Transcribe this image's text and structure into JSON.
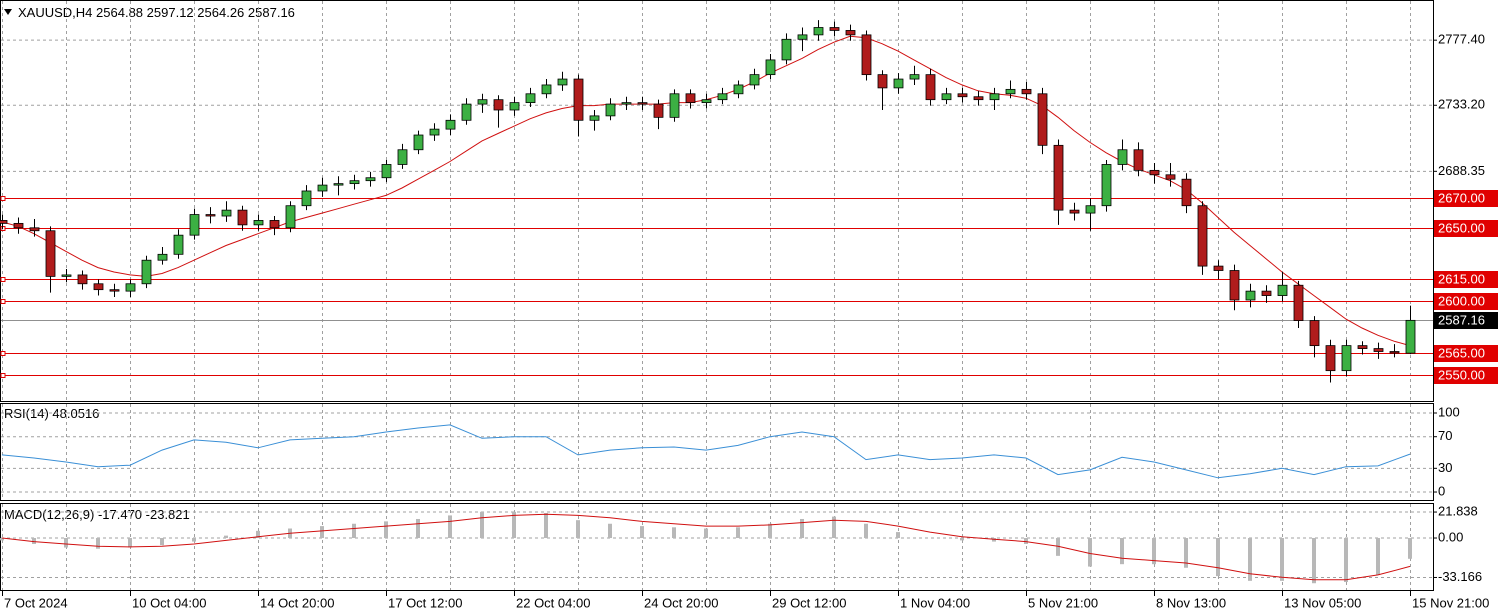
{
  "chart_data": [
    {
      "type": "candlestick",
      "symbol": "XAUUSD,H4",
      "categories": [
        "7 Oct 2024",
        null,
        null,
        null,
        null,
        null,
        null,
        null,
        "10 Oct 04:00",
        null,
        null,
        null,
        null,
        null,
        null,
        null,
        "14 Oct 20:00",
        null,
        null,
        null,
        null,
        null,
        null,
        null,
        "17 Oct 12:00",
        null,
        null,
        null,
        null,
        null,
        null,
        null,
        "22 Oct 04:00",
        null,
        null,
        null,
        null,
        null,
        null,
        null,
        "24 Oct 20:00",
        null,
        null,
        null,
        null,
        null,
        null,
        null,
        "29 Oct 12:00",
        null,
        null,
        null,
        null,
        null,
        null,
        null,
        "1 Nov 04:00",
        null,
        null,
        null,
        null,
        null,
        null,
        null,
        "5 Nov 21:00",
        null,
        null,
        null,
        null,
        null,
        null,
        null,
        "8 Nov 13:00",
        null,
        null,
        null,
        null,
        null,
        null,
        null,
        "13 Nov 05:00",
        null,
        null,
        null,
        null,
        null,
        null,
        null,
        "15 Nov 21:00"
      ],
      "open": [
        2655,
        2653,
        2650,
        2648,
        2617,
        2618,
        2612,
        2608,
        2607,
        2612,
        2628,
        2632,
        2645,
        2659,
        2658,
        2662,
        2652,
        2655,
        2650,
        2665,
        2675,
        2679,
        2680,
        2682,
        2684,
        2693,
        2703,
        2713,
        2717,
        2723,
        2734,
        2737,
        2730,
        2735,
        2741,
        2747,
        2751,
        2723,
        2726,
        2734,
        2735,
        2734,
        2725,
        2741,
        2735,
        2737,
        2741,
        2747,
        2754,
        2764,
        2778,
        2781,
        2786,
        2784,
        2781,
        2754,
        2745,
        2751,
        2754,
        2737,
        2741,
        2739,
        2737,
        2741,
        2744,
        2741,
        2706,
        2662,
        2660,
        2665,
        2693,
        2703,
        2689,
        2686,
        2683,
        2665,
        2624,
        2621,
        2601,
        2607,
        2604,
        2611,
        2587,
        2570,
        2553,
        2570,
        2568,
        2566,
        2564.88
      ],
      "high": [
        2659,
        2657,
        2656,
        2651,
        2622,
        2621,
        2615,
        2612,
        2615,
        2631,
        2637,
        2649,
        2663,
        2664,
        2668,
        2665,
        2659,
        2658,
        2668,
        2679,
        2684,
        2685,
        2686,
        2688,
        2696,
        2707,
        2716,
        2721,
        2727,
        2738,
        2741,
        2740,
        2739,
        2745,
        2751,
        2756,
        2754,
        2730,
        2738,
        2739,
        2739,
        2737,
        2744,
        2744,
        2741,
        2745,
        2750,
        2758,
        2768,
        2782,
        2786,
        2791,
        2790,
        2788,
        2784,
        2757,
        2755,
        2760,
        2758,
        2745,
        2745,
        2743,
        2745,
        2750,
        2749,
        2745,
        2710,
        2667,
        2670,
        2696,
        2710,
        2708,
        2694,
        2694,
        2687,
        2668,
        2628,
        2625,
        2612,
        2611,
        2620,
        2614,
        2590,
        2574,
        2574,
        2573,
        2572,
        2571,
        2597.12
      ],
      "low": [
        2649,
        2646,
        2644,
        2606,
        2613,
        2608,
        2604,
        2603,
        2603,
        2609,
        2625,
        2629,
        2642,
        2653,
        2654,
        2648,
        2648,
        2645,
        2647,
        2662,
        2671,
        2672,
        2676,
        2678,
        2681,
        2690,
        2700,
        2709,
        2713,
        2720,
        2728,
        2718,
        2726,
        2732,
        2738,
        2743,
        2712,
        2716,
        2723,
        2730,
        2730,
        2717,
        2722,
        2731,
        2731,
        2734,
        2738,
        2744,
        2751,
        2761,
        2770,
        2777,
        2780,
        2777,
        2750,
        2730,
        2741,
        2747,
        2733,
        2734,
        2735,
        2733,
        2730,
        2738,
        2737,
        2700,
        2652,
        2655,
        2648,
        2661,
        2689,
        2685,
        2680,
        2678,
        2660,
        2618,
        2615,
        2594,
        2596,
        2599,
        2600,
        2582,
        2562,
        2545,
        2549,
        2564,
        2561,
        2562,
        2564.26
      ],
      "close": [
        2653,
        2650,
        2648,
        2617,
        2618,
        2612,
        2608,
        2607,
        2612,
        2628,
        2632,
        2645,
        2659,
        2658,
        2662,
        2652,
        2655,
        2650,
        2665,
        2675,
        2679,
        2680,
        2682,
        2684,
        2693,
        2703,
        2713,
        2717,
        2723,
        2734,
        2737,
        2730,
        2735,
        2741,
        2747,
        2751,
        2723,
        2726,
        2734,
        2735,
        2734,
        2725,
        2741,
        2735,
        2737,
        2741,
        2747,
        2754,
        2764,
        2778,
        2781,
        2786,
        2784,
        2781,
        2754,
        2745,
        2751,
        2754,
        2737,
        2741,
        2739,
        2737,
        2741,
        2744,
        2741,
        2706,
        2662,
        2660,
        2665,
        2693,
        2703,
        2689,
        2686,
        2683,
        2665,
        2624,
        2621,
        2601,
        2607,
        2604,
        2611,
        2587,
        2570,
        2553,
        2570,
        2568,
        2566,
        2565,
        2587.16
      ],
      "up_color": "#3cb043",
      "down_color": "#b01c1c",
      "moving_average": {
        "color": "#d01010",
        "values": [
          2654,
          2651,
          2646,
          2640,
          2634,
          2628,
          2623,
          2620,
          2618,
          2617,
          2619,
          2623,
          2628,
          2633,
          2638,
          2642,
          2646,
          2650,
          2654,
          2657,
          2660,
          2663,
          2666,
          2669,
          2672,
          2677,
          2683,
          2689,
          2695,
          2702,
          2709,
          2714,
          2719,
          2724,
          2728,
          2731,
          2733,
          2733,
          2734,
          2734,
          2734,
          2734,
          2735,
          2735,
          2737,
          2740,
          2744,
          2749,
          2755,
          2760,
          2765,
          2771,
          2776,
          2780,
          2779,
          2775,
          2770,
          2764,
          2758,
          2752,
          2747,
          2743,
          2741,
          2740,
          2738,
          2733,
          2725,
          2716,
          2708,
          2701,
          2695,
          2690,
          2686,
          2682,
          2676,
          2667,
          2657,
          2647,
          2638,
          2629,
          2620,
          2612,
          2604,
          2596,
          2588,
          2582,
          2577,
          2573,
          2570
        ]
      },
      "levels": [
        {
          "value": 2670,
          "label": "2670.00"
        },
        {
          "value": 2650,
          "label": "2650.00"
        },
        {
          "value": 2615,
          "label": "2615.00"
        },
        {
          "value": 2600,
          "label": "2600.00"
        },
        {
          "value": 2565,
          "label": "2565.00"
        },
        {
          "value": 2550,
          "label": "2550.00"
        }
      ],
      "level_color": "#e00000",
      "ylim": [
        2532.4,
        2804
      ],
      "yticks": [
        {
          "value": 2777.4,
          "label": "2777.40"
        },
        {
          "value": 2733.2,
          "label": "2733.20"
        },
        2688.35
      ],
      "grid": true
    },
    {
      "type": "line",
      "title": "RSI(14)",
      "color": "#3a8fd6",
      "values": [
        47,
        43,
        38,
        32,
        34,
        53,
        66,
        63,
        56,
        66,
        68,
        70,
        76,
        81,
        85,
        68,
        70,
        70,
        47,
        53,
        56,
        57,
        53,
        59,
        70,
        76,
        70,
        41,
        47,
        41,
        43,
        47,
        43,
        22,
        28,
        44,
        38,
        28,
        18,
        23,
        30,
        22,
        32,
        33,
        48.0516
      ],
      "ylim": [
        -10.1,
        111.4
      ],
      "yticks": [
        0,
        30,
        70,
        100
      ],
      "grid": true
    },
    {
      "type": "macd",
      "title": "MACD(12,26,9)",
      "histogram": {
        "color": "#b8b8b8",
        "values": [
          -2,
          -5,
          -8,
          -9,
          -8,
          -6,
          -3,
          2,
          6,
          8,
          10,
          12,
          14,
          16,
          19,
          22,
          22,
          21,
          15,
          12,
          10,
          9,
          8,
          9,
          12,
          16,
          18,
          12,
          5,
          0,
          -2,
          -3,
          -5,
          -15,
          -24,
          -22,
          -22,
          -25,
          -32,
          -36,
          -36,
          -38,
          -37,
          -31,
          -17.47
        ],
        "value_labels": [
          null,
          null,
          null,
          null,
          null,
          null,
          null,
          null,
          null,
          null,
          null,
          null,
          null,
          null,
          null,
          null,
          null,
          null,
          null,
          null,
          null,
          null,
          null,
          null,
          null,
          null,
          null,
          null,
          null,
          null,
          null,
          null,
          null,
          null,
          null,
          null,
          null,
          null,
          null,
          null,
          null,
          null,
          null,
          null,
          "-17.470"
        ]
      },
      "signal": {
        "color": "#d01010",
        "values": [
          0,
          -3,
          -5,
          -7,
          -7.5,
          -7,
          -5,
          -2,
          1,
          4,
          6,
          8,
          10,
          12,
          14,
          17,
          19,
          20,
          19,
          17,
          14,
          12,
          10,
          10,
          11,
          13,
          15,
          14,
          10,
          5,
          1,
          -1,
          -3,
          -7,
          -13,
          -17,
          -19,
          -21,
          -25,
          -30,
          -33,
          -35,
          -35,
          -31,
          -23.821
        ]
      },
      "ylim": [
        -43.7,
        28.6
      ],
      "yticks": [
        21.838,
        {
          "value": 0,
          "label": "0.00"
        },
        -33.166
      ],
      "grid": true
    }
  ]
}
